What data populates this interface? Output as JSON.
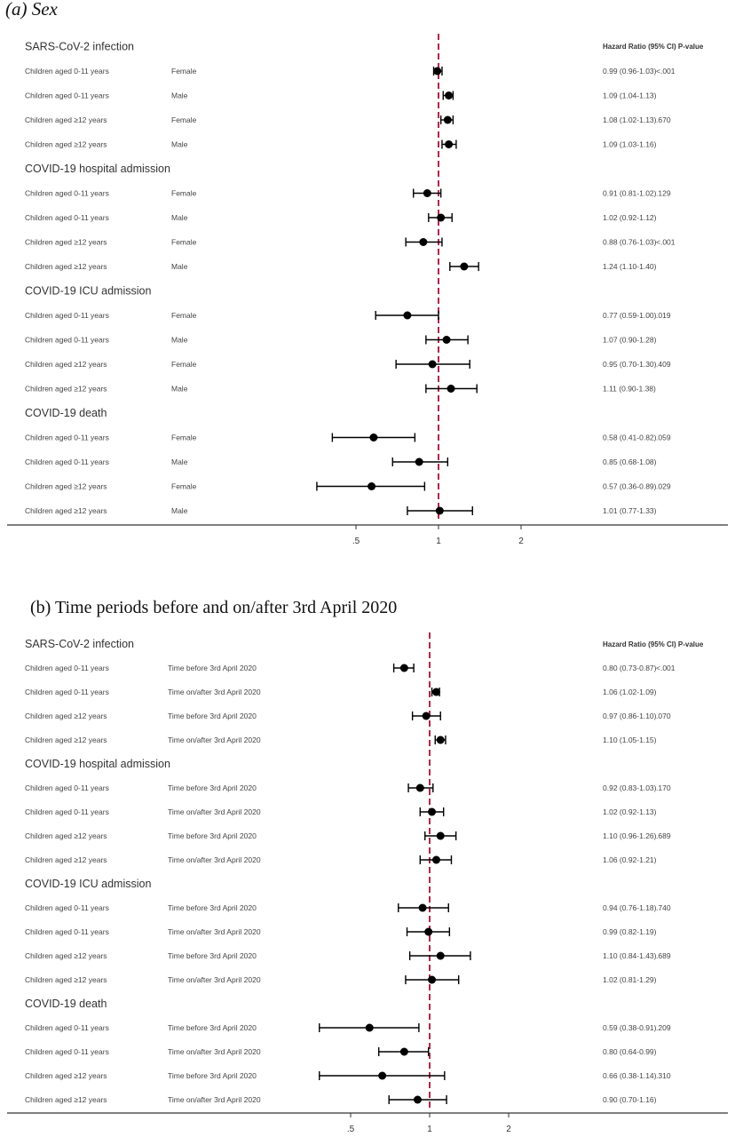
{
  "chart_data": [
    {
      "type": "forest",
      "title": "(a)  Sex",
      "column_header": "Hazard Ratio (95% CI)  P-value",
      "x_ticks": [
        ".5",
        "1",
        "2"
      ],
      "x_tick_values": [
        0.5,
        1,
        2
      ],
      "xlim": [
        0.25,
        4
      ],
      "x_scale": "log",
      "reference_line": 1,
      "groups": [
        {
          "name": "SARS-CoV-2 infection",
          "rows": [
            {
              "age": "Children aged 0-11 years",
              "subgroup": "Female",
              "hr": 0.99,
              "lo": 0.96,
              "hi": 1.03,
              "label": "0.99 (0.96-1.03)",
              "p": "<.001"
            },
            {
              "age": "Children aged 0-11 years",
              "subgroup": "Male",
              "hr": 1.09,
              "lo": 1.04,
              "hi": 1.13,
              "label": "1.09 (1.04-1.13)",
              "p": ""
            },
            {
              "age": "Children aged ≥12 years",
              "subgroup": "Female",
              "hr": 1.08,
              "lo": 1.02,
              "hi": 1.13,
              "label": "1.08 (1.02-1.13)",
              "p": ".670"
            },
            {
              "age": "Children aged ≥12 years",
              "subgroup": "Male",
              "hr": 1.09,
              "lo": 1.03,
              "hi": 1.16,
              "label": "1.09 (1.03-1.16)",
              "p": ""
            }
          ]
        },
        {
          "name": "COVID-19 hospital admission",
          "rows": [
            {
              "age": "Children aged 0-11 years",
              "subgroup": "Female",
              "hr": 0.91,
              "lo": 0.81,
              "hi": 1.02,
              "label": "0.91 (0.81-1.02)",
              "p": ".129"
            },
            {
              "age": "Children aged 0-11 years",
              "subgroup": "Male",
              "hr": 1.02,
              "lo": 0.92,
              "hi": 1.12,
              "label": "1.02 (0.92-1.12)",
              "p": ""
            },
            {
              "age": "Children aged ≥12 years",
              "subgroup": "Female",
              "hr": 0.88,
              "lo": 0.76,
              "hi": 1.03,
              "label": "0.88 (0.76-1.03)",
              "p": "<.001"
            },
            {
              "age": "Children aged ≥12 years",
              "subgroup": "Male",
              "hr": 1.24,
              "lo": 1.1,
              "hi": 1.4,
              "label": "1.24 (1.10-1.40)",
              "p": ""
            }
          ]
        },
        {
          "name": "COVID-19 ICU admission",
          "rows": [
            {
              "age": "Children aged 0-11 years",
              "subgroup": "Female",
              "hr": 0.77,
              "lo": 0.59,
              "hi": 1.0,
              "label": "0.77 (0.59-1.00)",
              "p": ".019"
            },
            {
              "age": "Children aged 0-11 years",
              "subgroup": "Male",
              "hr": 1.07,
              "lo": 0.9,
              "hi": 1.28,
              "label": "1.07 (0.90-1.28)",
              "p": ""
            },
            {
              "age": "Children aged ≥12 years",
              "subgroup": "Female",
              "hr": 0.95,
              "lo": 0.7,
              "hi": 1.3,
              "label": "0.95 (0.70-1.30)",
              "p": ".409"
            },
            {
              "age": "Children aged ≥12 years",
              "subgroup": "Male",
              "hr": 1.11,
              "lo": 0.9,
              "hi": 1.38,
              "label": "1.11 (0.90-1.38)",
              "p": ""
            }
          ]
        },
        {
          "name": "COVID-19 death",
          "rows": [
            {
              "age": "Children aged 0-11 years",
              "subgroup": "Female",
              "hr": 0.58,
              "lo": 0.41,
              "hi": 0.82,
              "label": "0.58 (0.41-0.82)",
              "p": ".059"
            },
            {
              "age": "Children aged 0-11 years",
              "subgroup": "Male",
              "hr": 0.85,
              "lo": 0.68,
              "hi": 1.08,
              "label": "0.85 (0.68-1.08)",
              "p": ""
            },
            {
              "age": "Children aged ≥12 years",
              "subgroup": "Female",
              "hr": 0.57,
              "lo": 0.36,
              "hi": 0.89,
              "label": "0.57 (0.36-0.89)",
              "p": ".029"
            },
            {
              "age": "Children aged ≥12 years",
              "subgroup": "Male",
              "hr": 1.01,
              "lo": 0.77,
              "hi": 1.33,
              "label": "1.01 (0.77-1.33)",
              "p": ""
            }
          ]
        }
      ]
    },
    {
      "type": "forest",
      "title": "(b)  Time periods before and on/after 3rd April 2020",
      "column_header": "Hazard Ratio (95% CI)  P-value",
      "x_ticks": [
        ".5",
        "1",
        "2"
      ],
      "x_tick_values": [
        0.5,
        1,
        2
      ],
      "xlim": [
        0.25,
        4
      ],
      "x_scale": "log",
      "reference_line": 1,
      "groups": [
        {
          "name": "SARS-CoV-2 infection",
          "rows": [
            {
              "age": "Children aged 0-11 years",
              "subgroup": "Time before 3rd April 2020",
              "hr": 0.8,
              "lo": 0.73,
              "hi": 0.87,
              "label": "0.80 (0.73-0.87)",
              "p": "<.001"
            },
            {
              "age": "Children aged 0-11 years",
              "subgroup": "Time on/after 3rd April 2020",
              "hr": 1.06,
              "lo": 1.02,
              "hi": 1.09,
              "label": "1.06 (1.02-1.09)",
              "p": ""
            },
            {
              "age": "Children aged ≥12 years",
              "subgroup": "Time before 3rd April 2020",
              "hr": 0.97,
              "lo": 0.86,
              "hi": 1.1,
              "label": "0.97 (0.86-1.10)",
              "p": ".070"
            },
            {
              "age": "Children aged ≥12 years",
              "subgroup": "Time on/after 3rd April 2020",
              "hr": 1.1,
              "lo": 1.05,
              "hi": 1.15,
              "label": "1.10 (1.05-1.15)",
              "p": ""
            }
          ]
        },
        {
          "name": "COVID-19 hospital admission",
          "rows": [
            {
              "age": "Children aged 0-11 years",
              "subgroup": "Time before 3rd April 2020",
              "hr": 0.92,
              "lo": 0.83,
              "hi": 1.03,
              "label": "0.92 (0.83-1.03)",
              "p": ".170"
            },
            {
              "age": "Children aged 0-11 years",
              "subgroup": "Time on/after 3rd April 2020",
              "hr": 1.02,
              "lo": 0.92,
              "hi": 1.13,
              "label": "1.02 (0.92-1.13)",
              "p": ""
            },
            {
              "age": "Children aged ≥12 years",
              "subgroup": "Time before 3rd April 2020",
              "hr": 1.1,
              "lo": 0.96,
              "hi": 1.26,
              "label": "1.10 (0.96-1.26)",
              "p": ".689"
            },
            {
              "age": "Children aged ≥12 years",
              "subgroup": "Time on/after 3rd April 2020",
              "hr": 1.06,
              "lo": 0.92,
              "hi": 1.21,
              "label": "1.06 (0.92-1.21)",
              "p": ""
            }
          ]
        },
        {
          "name": "COVID-19 ICU admission",
          "rows": [
            {
              "age": "Children aged 0-11 years",
              "subgroup": "Time before 3rd April 2020",
              "hr": 0.94,
              "lo": 0.76,
              "hi": 1.18,
              "label": "0.94 (0.76-1.18)",
              "p": ".740"
            },
            {
              "age": "Children aged 0-11 years",
              "subgroup": "Time on/after 3rd April 2020",
              "hr": 0.99,
              "lo": 0.82,
              "hi": 1.19,
              "label": "0.99 (0.82-1.19)",
              "p": ""
            },
            {
              "age": "Children aged ≥12 years",
              "subgroup": "Time before 3rd April 2020",
              "hr": 1.1,
              "lo": 0.84,
              "hi": 1.43,
              "label": "1.10 (0.84-1.43)",
              "p": ".689"
            },
            {
              "age": "Children aged ≥12 years",
              "subgroup": "Time on/after 3rd April 2020",
              "hr": 1.02,
              "lo": 0.81,
              "hi": 1.29,
              "label": "1.02 (0.81-1.29)",
              "p": ""
            }
          ]
        },
        {
          "name": "COVID-19 death",
          "rows": [
            {
              "age": "Children aged 0-11 years",
              "subgroup": "Time before 3rd April 2020",
              "hr": 0.59,
              "lo": 0.38,
              "hi": 0.91,
              "label": "0.59 (0.38-0.91)",
              "p": ".209"
            },
            {
              "age": "Children aged 0-11 years",
              "subgroup": "Time on/after 3rd April 2020",
              "hr": 0.8,
              "lo": 0.64,
              "hi": 0.99,
              "label": "0.80 (0.64-0.99)",
              "p": ""
            },
            {
              "age": "Children aged ≥12 years",
              "subgroup": "Time before 3rd April 2020",
              "hr": 0.66,
              "lo": 0.38,
              "hi": 1.14,
              "label": "0.66 (0.38-1.14)",
              "p": ".310"
            },
            {
              "age": "Children aged ≥12 years",
              "subgroup": "Time on/after 3rd April 2020",
              "hr": 0.9,
              "lo": 0.7,
              "hi": 1.16,
              "label": "0.90 (0.70-1.16)",
              "p": ""
            }
          ]
        }
      ]
    }
  ],
  "colors": {
    "reference_line": "#b0284a",
    "marker": "#000000",
    "axis": "#333333"
  }
}
